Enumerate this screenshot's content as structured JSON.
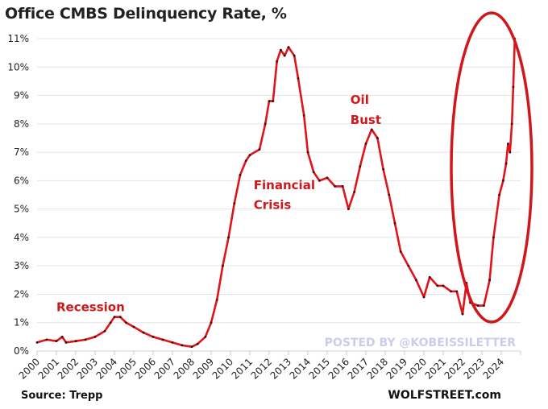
{
  "chart_data": {
    "type": "line",
    "title": "Office CMBS Delinquency Rate, %",
    "source": "Source: Trepp",
    "credit": "WOLFSTREET.com",
    "watermark": "POSTED BY @KOBEISSILETTER",
    "xlim": [
      2000,
      2025
    ],
    "ylim": [
      0,
      11
    ],
    "y_ticks": [
      "0%",
      "1%",
      "2%",
      "3%",
      "4%",
      "5%",
      "6%",
      "7%",
      "8%",
      "9%",
      "10%",
      "11%"
    ],
    "x_ticks": [
      "2000",
      "2001",
      "2002",
      "2003",
      "2004",
      "2005",
      "2006",
      "2007",
      "2008",
      "2009",
      "2010",
      "2011",
      "2012",
      "2013",
      "2014",
      "2015",
      "2016",
      "2017",
      "2018",
      "2019",
      "2020",
      "2021",
      "2022",
      "2023",
      "2024"
    ],
    "grid": "horizontal",
    "line_color": "#e0141a",
    "marker_color": "#3a0a0a",
    "annotations": [
      {
        "text": "Recession",
        "x": 2001,
        "y": 1.4
      },
      {
        "text": "Financial",
        "x": 2011.2,
        "y": 5.7
      },
      {
        "text": "Crisis",
        "x": 2011.2,
        "y": 5.0
      },
      {
        "text": "Oil",
        "x": 2016.2,
        "y": 8.7
      },
      {
        "text": "Bust",
        "x": 2016.2,
        "y": 8.0
      }
    ],
    "highlight_ellipse_color": "#d0181c",
    "series": [
      {
        "x": [
          2000.0,
          2000.5,
          2001.0,
          2001.3,
          2001.5,
          2002.0,
          2002.5,
          2003.0,
          2003.5,
          2003.8,
          2004.0,
          2004.3,
          2004.6,
          2005.0,
          2005.5,
          2006.0,
          2006.5,
          2007.0,
          2007.5,
          2008.0,
          2008.3,
          2008.7,
          2009.0,
          2009.3,
          2009.6,
          2009.9,
          2010.2,
          2010.5,
          2010.8,
          2011.0,
          2011.5,
          2011.8,
          2012.0,
          2012.2,
          2012.4,
          2012.6,
          2012.8,
          2013.0,
          2013.3,
          2013.5,
          2013.8,
          2014.0,
          2014.3,
          2014.6,
          2015.0,
          2015.4,
          2015.8,
          2016.1,
          2016.4,
          2016.7,
          2017.0,
          2017.3,
          2017.6,
          2017.9,
          2018.2,
          2018.5,
          2018.8,
          2019.2,
          2019.6,
          2020.0,
          2020.3,
          2020.7,
          2021.0,
          2021.4,
          2021.7,
          2022.0,
          2022.2,
          2022.4,
          2022.8,
          2023.1,
          2023.4,
          2023.6,
          2023.9,
          2024.1,
          2024.25,
          2024.35,
          2024.45,
          2024.55,
          2024.62,
          2024.7
        ],
        "y": [
          0.3,
          0.4,
          0.35,
          0.5,
          0.3,
          0.35,
          0.4,
          0.5,
          0.7,
          1.0,
          1.2,
          1.2,
          1.0,
          0.85,
          0.65,
          0.5,
          0.4,
          0.3,
          0.2,
          0.15,
          0.25,
          0.5,
          1.0,
          1.8,
          3.0,
          4.0,
          5.2,
          6.2,
          6.7,
          6.9,
          7.1,
          8.0,
          8.8,
          8.8,
          10.2,
          10.6,
          10.4,
          10.7,
          10.4,
          9.6,
          8.3,
          7.0,
          6.3,
          6.0,
          6.1,
          5.8,
          5.8,
          5.0,
          5.6,
          6.5,
          7.3,
          7.8,
          7.5,
          6.4,
          5.5,
          4.5,
          3.5,
          3.0,
          2.5,
          1.9,
          2.6,
          2.3,
          2.3,
          2.1,
          2.1,
          1.3,
          2.4,
          1.7,
          1.6,
          1.6,
          2.5,
          4.0,
          5.5,
          6.0,
          6.6,
          7.3,
          7.0,
          8.0,
          9.3,
          11.0
        ]
      }
    ]
  }
}
